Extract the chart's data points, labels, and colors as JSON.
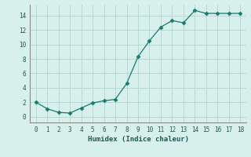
{
  "x": [
    0,
    1,
    2,
    3,
    4,
    5,
    6,
    7,
    8,
    9,
    10,
    11,
    12,
    13,
    14,
    15,
    16,
    17,
    18
  ],
  "y": [
    2.0,
    1.1,
    0.6,
    0.5,
    1.2,
    1.9,
    2.2,
    2.4,
    4.6,
    8.3,
    10.5,
    12.4,
    13.3,
    13.0,
    14.7,
    14.3,
    14.3,
    14.3,
    14.3
  ],
  "xlabel": "Humidex (Indice chaleur)",
  "xlim": [
    -0.5,
    18.5
  ],
  "ylim": [
    -0.8,
    15.5
  ],
  "yticks": [
    0,
    2,
    4,
    6,
    8,
    10,
    12,
    14
  ],
  "xticks": [
    0,
    1,
    2,
    3,
    4,
    5,
    6,
    7,
    8,
    9,
    10,
    11,
    12,
    13,
    14,
    15,
    16,
    17,
    18
  ],
  "line_color": "#1a7a6e",
  "marker": "D",
  "marker_size": 2.5,
  "bg_color": "#d8f0ec",
  "grid_color": "#b8d8d4",
  "spine_color": "#888888",
  "tick_color": "#1a5a54",
  "font_color": "#1a5a54",
  "xlabel_color": "#1a5a54"
}
